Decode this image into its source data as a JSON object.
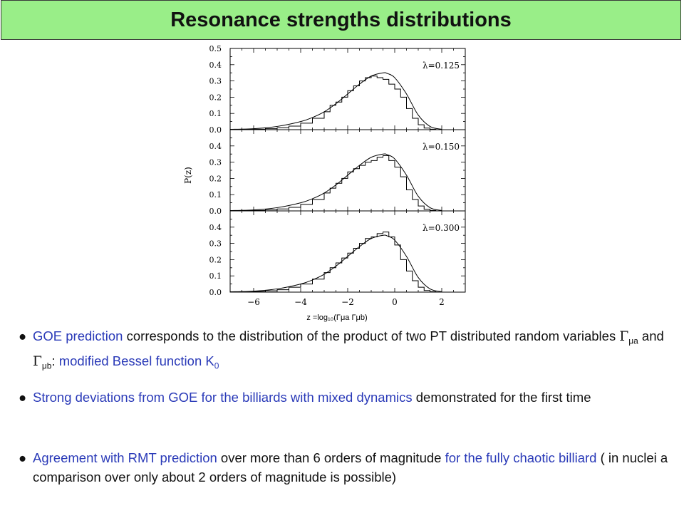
{
  "slide": {
    "title": "Resonance strengths distributions"
  },
  "chart_data": [
    {
      "type": "line",
      "label": "λ=0.125",
      "ylabel": "P(z)",
      "xlabel": "z =log₁₀(Γμa Γμb)",
      "xlim": [
        -7,
        3
      ],
      "ylim": [
        0,
        0.5
      ],
      "yticks": [
        "0.0",
        "0.1",
        "0.2",
        "0.3",
        "0.4",
        "0.5"
      ],
      "series": [
        {
          "name": "histogram",
          "x": [
            -6.5,
            -6,
            -5.5,
            -5,
            -4.5,
            -4,
            -3.5,
            -3,
            -2.75,
            -2.5,
            -2.25,
            -2,
            -1.75,
            -1.5,
            -1.25,
            -1,
            -0.75,
            -0.5,
            -0.25,
            0,
            0.25,
            0.5,
            0.75,
            1,
            1.25,
            1.5
          ],
          "values": [
            0.002,
            0.003,
            0.006,
            0.012,
            0.022,
            0.04,
            0.07,
            0.11,
            0.15,
            0.17,
            0.2,
            0.24,
            0.27,
            0.3,
            0.32,
            0.33,
            0.32,
            0.31,
            0.28,
            0.25,
            0.2,
            0.13,
            0.07,
            0.03,
            0.01,
            0.003
          ]
        },
        {
          "name": "GOE prediction",
          "x": [
            -7,
            -6,
            -5,
            -4,
            -3.5,
            -3,
            -2.5,
            -2,
            -1.5,
            -1,
            -0.5,
            -0.3,
            0,
            0.5,
            1,
            1.5,
            2
          ],
          "values": [
            0.002,
            0.006,
            0.02,
            0.05,
            0.075,
            0.11,
            0.16,
            0.22,
            0.28,
            0.33,
            0.35,
            0.345,
            0.32,
            0.22,
            0.09,
            0.02,
            0.002
          ]
        }
      ]
    },
    {
      "type": "line",
      "label": "λ=0.150",
      "ylim": [
        0,
        0.5
      ],
      "yticks": [
        "0.0",
        "0.1",
        "0.2",
        "0.3",
        "0.4"
      ],
      "series": [
        {
          "name": "histogram",
          "x": [
            -6.5,
            -6,
            -5.5,
            -5,
            -4.5,
            -4,
            -3.5,
            -3,
            -2.75,
            -2.5,
            -2.25,
            -2,
            -1.75,
            -1.5,
            -1.25,
            -1,
            -0.75,
            -0.5,
            -0.25,
            0,
            0.25,
            0.5,
            0.75,
            1,
            1.25,
            1.5
          ],
          "values": [
            0.002,
            0.003,
            0.006,
            0.012,
            0.022,
            0.04,
            0.07,
            0.11,
            0.14,
            0.17,
            0.2,
            0.24,
            0.26,
            0.28,
            0.3,
            0.31,
            0.33,
            0.34,
            0.31,
            0.27,
            0.21,
            0.13,
            0.07,
            0.03,
            0.01,
            0.003
          ]
        },
        {
          "name": "GOE prediction",
          "x": [
            -7,
            -6,
            -5,
            -4,
            -3.5,
            -3,
            -2.5,
            -2,
            -1.5,
            -1,
            -0.5,
            -0.3,
            0,
            0.5,
            1,
            1.5,
            2
          ],
          "values": [
            0.002,
            0.006,
            0.02,
            0.05,
            0.075,
            0.11,
            0.16,
            0.22,
            0.28,
            0.33,
            0.35,
            0.345,
            0.32,
            0.22,
            0.09,
            0.02,
            0.002
          ]
        }
      ]
    },
    {
      "type": "line",
      "label": "λ=0.300",
      "ylim": [
        0,
        0.5
      ],
      "yticks": [
        "0.0",
        "0.1",
        "0.2",
        "0.3",
        "0.4"
      ],
      "xticks": [
        "−6",
        "−4",
        "−2",
        "0",
        "2"
      ],
      "series": [
        {
          "name": "histogram",
          "x": [
            -6.5,
            -6,
            -5.5,
            -5,
            -4.5,
            -4,
            -3.5,
            -3,
            -2.75,
            -2.5,
            -2.25,
            -2,
            -1.75,
            -1.5,
            -1.25,
            -1,
            -0.75,
            -0.5,
            -0.25,
            0,
            0.25,
            0.5,
            0.75,
            1,
            1.25,
            1.5
          ],
          "values": [
            0.002,
            0.004,
            0.008,
            0.015,
            0.03,
            0.05,
            0.08,
            0.12,
            0.15,
            0.18,
            0.21,
            0.24,
            0.27,
            0.3,
            0.33,
            0.34,
            0.36,
            0.37,
            0.34,
            0.29,
            0.2,
            0.13,
            0.07,
            0.03,
            0.01,
            0.003
          ]
        },
        {
          "name": "GOE prediction",
          "x": [
            -7,
            -6,
            -5,
            -4,
            -3.5,
            -3,
            -2.5,
            -2,
            -1.5,
            -1,
            -0.5,
            -0.3,
            0,
            0.5,
            1,
            1.5,
            2
          ],
          "values": [
            0.002,
            0.006,
            0.02,
            0.05,
            0.075,
            0.11,
            0.16,
            0.22,
            0.28,
            0.33,
            0.35,
            0.345,
            0.32,
            0.22,
            0.09,
            0.02,
            0.002
          ]
        }
      ]
    }
  ],
  "bullets": {
    "b1": {
      "marker": "●",
      "part1_blue": "GOE prediction",
      "part2": " corresponds to the distribution of the product of two PT distributed random variables ",
      "gamma": "Γ",
      "sub_a": "μa",
      "and": " and ",
      "sub_b": "μb",
      "part3": ": ",
      "part4_blue": "modified Bessel function K",
      "k_sub": "0"
    },
    "b2": {
      "marker": "●",
      "part1_blue": "Strong deviations from GOE for the billiards with mixed dynamics",
      "part2": " demonstrated for the first time"
    },
    "b3": {
      "marker": "●",
      "part1_blue": "Agreement with RMT prediction",
      "part2": " over more than 6 orders of magnitude ",
      "part3_blue": "for the fully chaotic billiard",
      "part4": " ( in nuclei a comparison over only about 2 orders of magnitude is possible)"
    }
  }
}
